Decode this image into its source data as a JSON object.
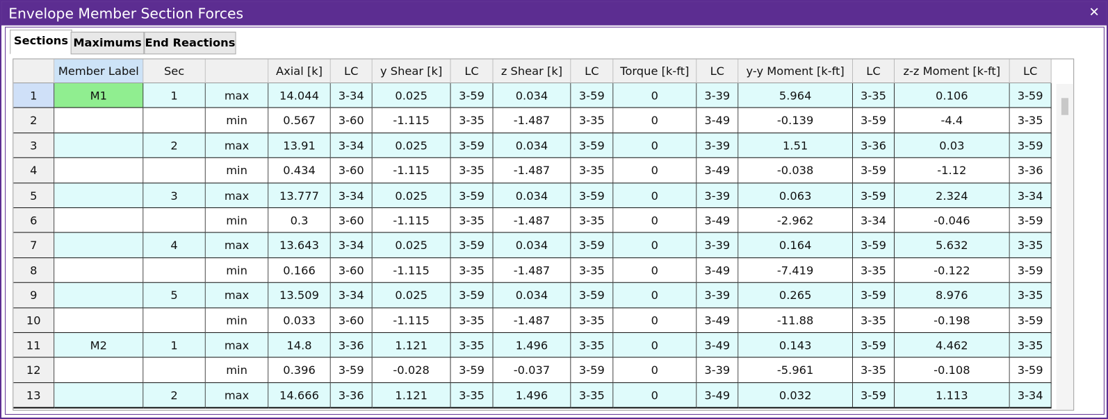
{
  "window": {
    "title": "Envelope Member Section Forces",
    "close": "✕"
  },
  "tabs": [
    "Sections",
    "Maximums",
    "End Reactions"
  ],
  "table": {
    "header": [
      "Member Label",
      "Sec",
      "",
      "Axial [k]",
      "LC",
      "y Shear [k]",
      "LC",
      "z Shear [k]",
      "LC",
      "Torque [k-ft]",
      "LC",
      "y-y Moment [k-ft]",
      "LC",
      "z-z Moment [k-ft]",
      "LC"
    ],
    "rows": [
      [
        "1",
        "M1",
        "1",
        "max",
        "14.044",
        "3-34",
        "0.025",
        "3-59",
        "0.034",
        "3-59",
        "0",
        "3-39",
        "5.964",
        "3-35",
        "0.106",
        "3-59"
      ],
      [
        "2",
        null,
        null,
        "min",
        "0.567",
        "3-60",
        "-1.115",
        "3-35",
        "-1.487",
        "3-35",
        "0",
        "3-49",
        "-0.139",
        "3-59",
        "-4.4",
        "3-35"
      ],
      [
        "3",
        null,
        "2",
        "max",
        "13.91",
        "3-34",
        "0.025",
        "3-59",
        "0.034",
        "3-59",
        "0",
        "3-39",
        "1.51",
        "3-36",
        "0.03",
        "3-59"
      ],
      [
        "4",
        null,
        null,
        "min",
        "0.434",
        "3-60",
        "-1.115",
        "3-35",
        "-1.487",
        "3-35",
        "0",
        "3-49",
        "-0.038",
        "3-59",
        "-1.12",
        "3-36"
      ],
      [
        "5",
        null,
        "3",
        "max",
        "13.777",
        "3-34",
        "0.025",
        "3-59",
        "0.034",
        "3-59",
        "0",
        "3-39",
        "0.063",
        "3-59",
        "2.324",
        "3-34"
      ],
      [
        "6",
        null,
        null,
        "min",
        "0.3",
        "3-60",
        "-1.115",
        "3-35",
        "-1.487",
        "3-35",
        "0",
        "3-49",
        "-2.962",
        "3-34",
        "-0.046",
        "3-59"
      ],
      [
        "7",
        null,
        "4",
        "max",
        "13.643",
        "3-34",
        "0.025",
        "3-59",
        "0.034",
        "3-59",
        "0",
        "3-39",
        "0.164",
        "3-59",
        "5.632",
        "3-35"
      ],
      [
        "8",
        null,
        null,
        "min",
        "0.166",
        "3-60",
        "-1.115",
        "3-35",
        "-1.487",
        "3-35",
        "0",
        "3-49",
        "-7.419",
        "3-35",
        "-0.122",
        "3-59"
      ],
      [
        "9",
        null,
        "5",
        "max",
        "13.509",
        "3-34",
        "0.025",
        "3-59",
        "0.034",
        "3-59",
        "0",
        "3-39",
        "0.265",
        "3-59",
        "8.976",
        "3-35"
      ],
      [
        "10",
        null,
        null,
        "min",
        "0.033",
        "3-60",
        "-1.115",
        "3-35",
        "-1.487",
        "3-35",
        "0",
        "3-49",
        "-11.88",
        "3-35",
        "-0.198",
        "3-59"
      ],
      [
        "11",
        "M2",
        "1",
        "max",
        "14.8",
        "3-36",
        "1.121",
        "3-35",
        "1.496",
        "3-35",
        "0",
        "3-49",
        "0.143",
        "3-59",
        "4.462",
        "3-35"
      ],
      [
        "12",
        null,
        null,
        "min",
        "0.396",
        "3-59",
        "-0.028",
        "3-59",
        "-0.037",
        "3-59",
        "0",
        "3-39",
        "-5.961",
        "3-35",
        "-0.108",
        "3-59"
      ],
      [
        "13",
        null,
        "2",
        "max",
        "14.666",
        "3-36",
        "1.121",
        "3-35",
        "1.496",
        "3-35",
        "0",
        "3-49",
        "0.032",
        "3-59",
        "1.113",
        "3-34"
      ]
    ]
  }
}
